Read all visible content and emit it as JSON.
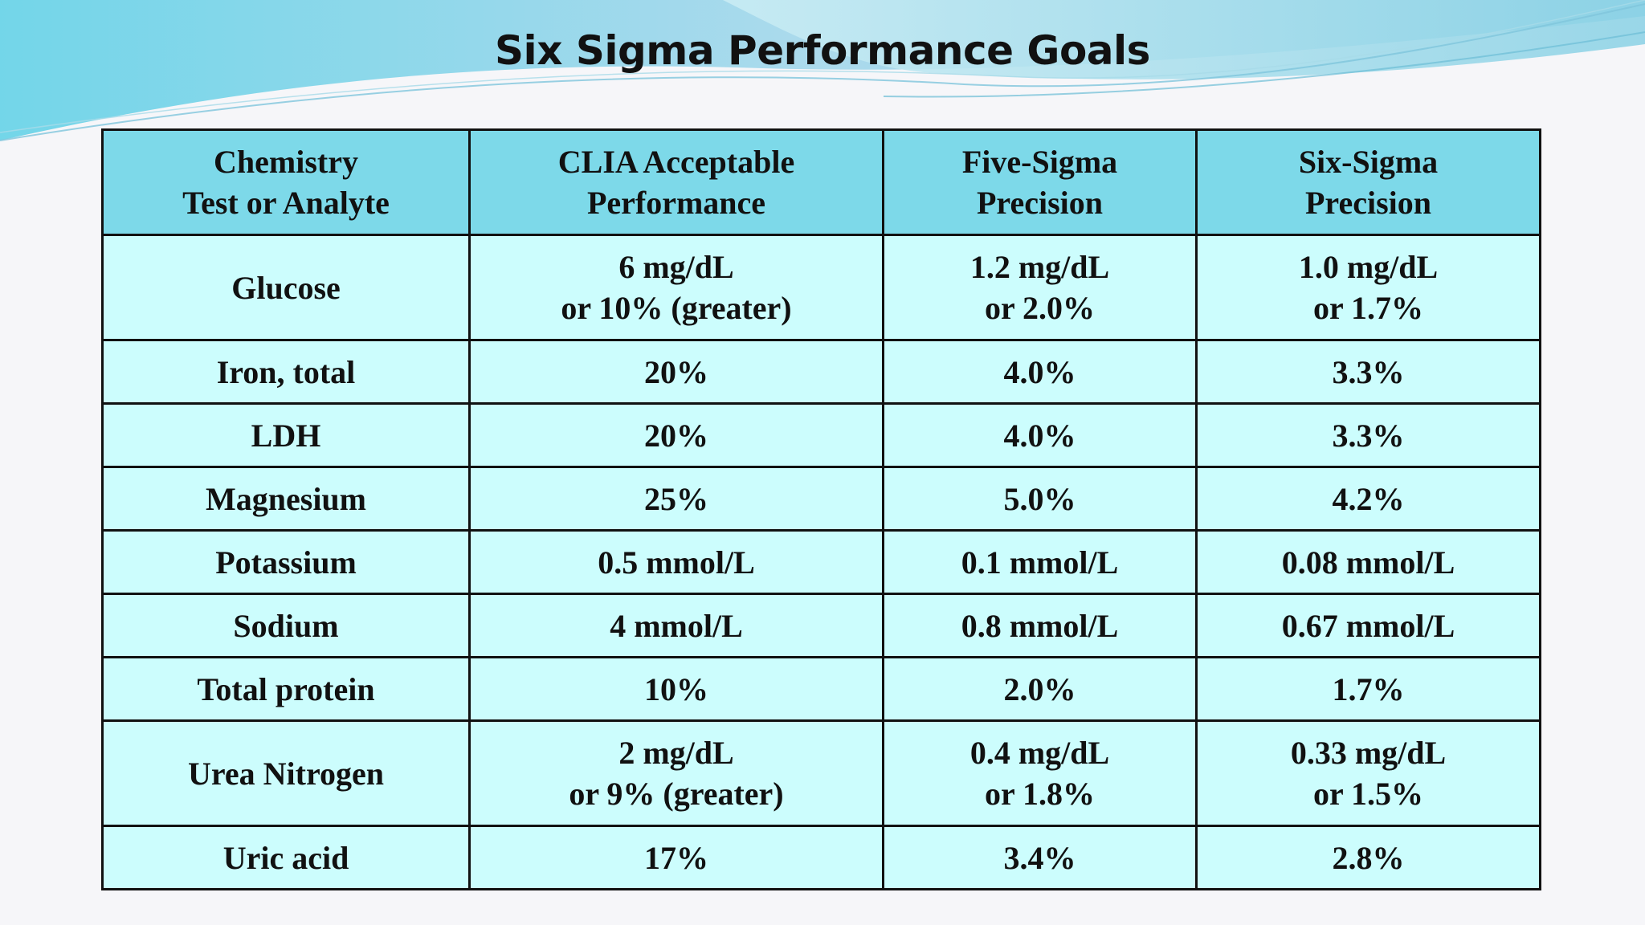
{
  "slide": {
    "title": "Six Sigma Performance Goals"
  },
  "table": {
    "headers": [
      [
        "Chemistry",
        "Test or Analyte"
      ],
      [
        "CLIA Acceptable",
        "Performance"
      ],
      [
        "Five-Sigma",
        "Precision"
      ],
      [
        "Six-Sigma",
        "Precision"
      ]
    ],
    "rows": [
      {
        "analyte": "Glucose",
        "clia": [
          "6 mg/dL",
          "or 10% (greater)"
        ],
        "five_sigma": [
          "1.2 mg/dL",
          "or 2.0%"
        ],
        "six_sigma": [
          "1.0 mg/dL",
          "or 1.7%"
        ]
      },
      {
        "analyte": "Iron, total",
        "clia": [
          "20%"
        ],
        "five_sigma": [
          "4.0%"
        ],
        "six_sigma": [
          "3.3%"
        ]
      },
      {
        "analyte": "LDH",
        "clia": [
          "20%"
        ],
        "five_sigma": [
          "4.0%"
        ],
        "six_sigma": [
          "3.3%"
        ]
      },
      {
        "analyte": "Magnesium",
        "clia": [
          "25%"
        ],
        "five_sigma": [
          "5.0%"
        ],
        "six_sigma": [
          "4.2%"
        ]
      },
      {
        "analyte": "Potassium",
        "clia": [
          "0.5 mmol/L"
        ],
        "five_sigma": [
          "0.1 mmol/L"
        ],
        "six_sigma": [
          "0.08 mmol/L"
        ]
      },
      {
        "analyte": "Sodium",
        "clia": [
          "4 mmol/L"
        ],
        "five_sigma": [
          "0.8 mmol/L"
        ],
        "six_sigma": [
          "0.67 mmol/L"
        ]
      },
      {
        "analyte": "Total protein",
        "clia": [
          "10%"
        ],
        "five_sigma": [
          "2.0%"
        ],
        "six_sigma": [
          "1.7%"
        ]
      },
      {
        "analyte": "Urea Nitrogen",
        "clia": [
          "2 mg/dL",
          "or 9% (greater)"
        ],
        "five_sigma": [
          "0.4 mg/dL",
          "or 1.8%"
        ],
        "six_sigma": [
          "0.33 mg/dL",
          "or 1.5%"
        ]
      },
      {
        "analyte": "Uric acid",
        "clia": [
          "17%"
        ],
        "five_sigma": [
          "3.4%"
        ],
        "six_sigma": [
          "2.8%"
        ]
      }
    ]
  },
  "colors": {
    "header_bg": "#7dd9e9",
    "cell_bg": "#ccfdfd",
    "border": "#111111",
    "wave_primary": "#5fc8df",
    "background": "#f6f6f9"
  }
}
